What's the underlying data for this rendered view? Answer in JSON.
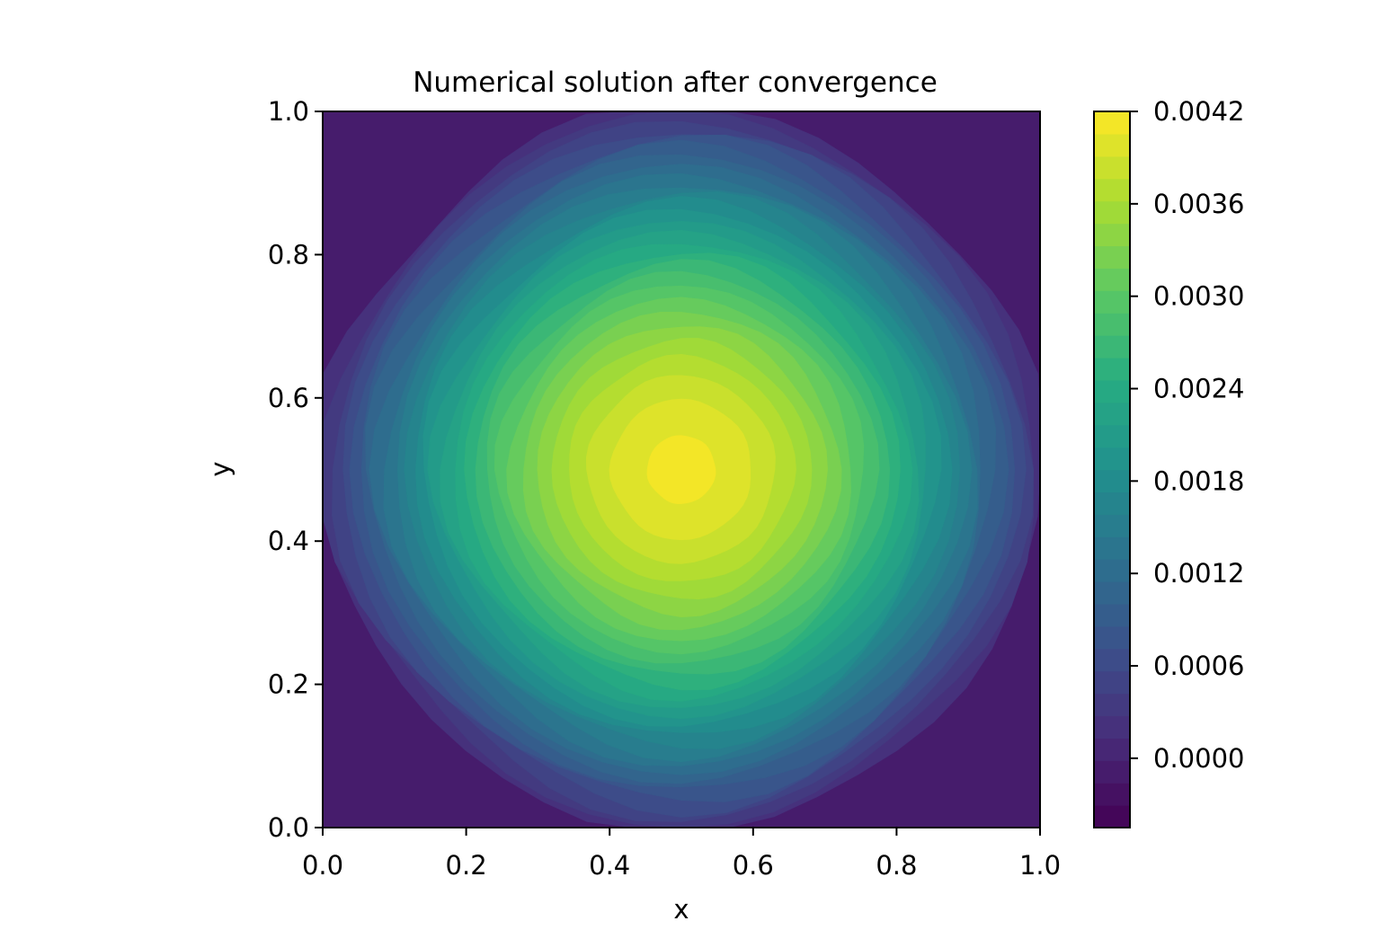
{
  "chart_data": {
    "type": "heatmap",
    "subtype": "filled-contour",
    "title": "Numerical solution after convergence",
    "xlabel": "x",
    "ylabel": "y",
    "xlim": [
      0.0,
      1.0
    ],
    "ylim": [
      0.0,
      1.0
    ],
    "xticks": [
      "0.0",
      "0.2",
      "0.4",
      "0.6",
      "0.8",
      "1.0"
    ],
    "yticks": [
      "0.0",
      "0.2",
      "0.4",
      "0.6",
      "0.8",
      "1.0"
    ],
    "field": {
      "center_x": 0.5,
      "center_y": 0.5,
      "peak_value": 0.0041,
      "boundary_value": 0.0
    },
    "colorbar": {
      "colormap": "viridis",
      "vmin": -0.00045,
      "vmax": 0.0042,
      "levels": 32,
      "ticks": [
        0.0,
        0.0006,
        0.0012,
        0.0018,
        0.0024,
        0.003,
        0.0036,
        0.0042
      ],
      "tick_labels": [
        "0.0000",
        "0.0006",
        "0.0012",
        "0.0018",
        "0.0024",
        "0.0030",
        "0.0036",
        "0.0042"
      ]
    },
    "grid": false
  }
}
